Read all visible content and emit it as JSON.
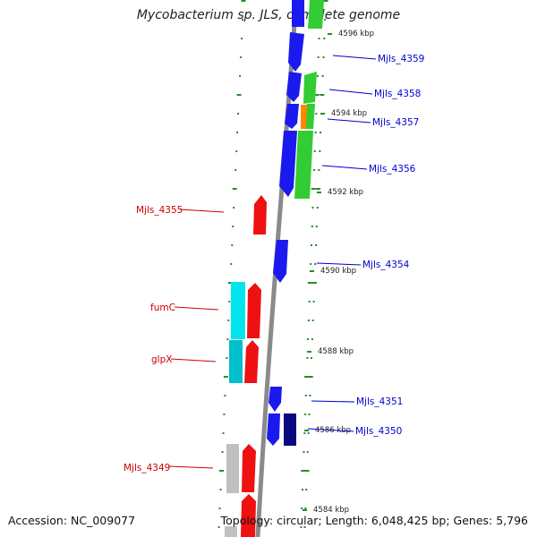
{
  "title": "Mycobacterium sp. JLS, complete genome",
  "footer": {
    "accession": "Accession: NC_009077",
    "topology": "Topology: circular; Length: 6,048,425 bp; Genes: 5,796"
  },
  "colors": {
    "forward_cds": "#1a1aee",
    "reverse_cds": "#ee1111",
    "rna_green": "#33cc33",
    "cyan": "#00e5ee",
    "teal": "#00c0cc",
    "gray": "#c0c0c0",
    "orange": "#ff8800",
    "navy": "#0a0a80",
    "tick_green": "#2a8a2a",
    "backbone": "#8a8a8a",
    "label_blue": "#0000cc",
    "label_red": "#cc0000"
  },
  "kbp_labels": [
    "4596 kbp",
    "4594 kbp",
    "4592 kbp",
    "4590 kbp",
    "4588 kbp",
    "4586 kbp",
    "4584 kbp"
  ],
  "genes_right": [
    "Mjls_4359",
    "Mjls_4358",
    "Mjls_4357",
    "Mjls_4356",
    "Mjls_4354",
    "Mjls_4351",
    "Mjls_4350"
  ],
  "genes_left": [
    "Mjls_4355",
    "fumC",
    "glpX",
    "Mjls_4349"
  ]
}
